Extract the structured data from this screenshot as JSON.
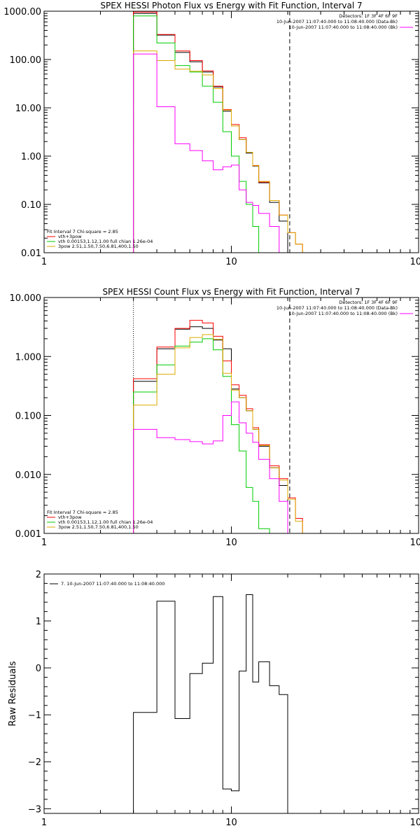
{
  "chart_data": [
    {
      "type": "line",
      "title": "SPEX HESSI Photon Flux vs Energy with Fit Function, Interval 7",
      "xscale": "log",
      "yscale": "log",
      "xlim": [
        1,
        100
      ],
      "ylim": [
        0.01,
        1000
      ],
      "xticks": [
        1,
        10,
        100
      ],
      "xtick_labels": [
        "1",
        "10",
        "100"
      ],
      "yticks": [
        0.01,
        0.1,
        1,
        10,
        100,
        1000
      ],
      "ytick_labels": [
        "0.01",
        "0.10",
        "1.00",
        "10.00",
        "100.00",
        "1000.00"
      ],
      "vlines": [
        {
          "x": 3,
          "style": "dotted"
        },
        {
          "x": 20.5,
          "style": "dashed"
        }
      ],
      "header": [
        "Detectors: 1F 3F 4F 6F 9F",
        "10-Jun-2007 11:07:40.000 to 11:08:40.000 (Data-Bk)",
        "10-Jun-2007 11:07:40.000 to 11:08:40.000 (Bk)"
      ],
      "header_colors": [
        "#000000",
        "#000000",
        "#ff00ff"
      ],
      "legend_title": "Fit Interval  7   Chi-square = 2.85",
      "legend": [
        {
          "label": "vth+3pow",
          "color": "#ff0000"
        },
        {
          "label": "vth 0.00153,1.12,1.00  full chian 1.26e-04",
          "color": "#00cc00"
        },
        {
          "label": "3pow 2.51,1.50,7.50,6.81,400,1.50",
          "color": "#ddaa00"
        }
      ],
      "bin_edges": [
        3,
        4,
        5,
        6,
        7,
        8,
        9,
        10,
        11,
        12,
        13,
        14,
        16,
        18,
        20,
        22,
        24,
        26
      ],
      "series": [
        {
          "name": "data",
          "color": "#000000",
          "values": [
            900,
            320,
            140,
            90,
            55,
            27,
            8.5,
            4.2,
            2.2,
            1.15,
            0.62,
            0.28,
            0.11,
            0.045,
            null,
            null,
            null
          ]
        },
        {
          "name": "vth+3pow",
          "color": "#ff0000",
          "values": [
            960,
            330,
            150,
            95,
            58,
            28,
            9.2,
            4.5,
            2.4,
            1.2,
            0.64,
            0.29,
            0.12,
            0.06,
            0.026,
            0.015,
            null
          ]
        },
        {
          "name": "vth",
          "color": "#00cc00",
          "values": [
            800,
            220,
            75,
            55,
            28,
            13,
            3.2,
            1.0,
            0.3,
            0.1,
            0.035,
            null,
            null,
            null,
            null,
            null,
            null
          ]
        },
        {
          "name": "3pow",
          "color": "#ddaa00",
          "values": [
            150,
            95,
            63,
            57,
            48,
            25,
            9.0,
            4.2,
            2.2,
            1.2,
            0.63,
            0.3,
            0.12,
            0.06,
            0.026,
            0.015,
            null
          ]
        },
        {
          "name": "background",
          "color": "#ff00ff",
          "values": [
            130,
            10.5,
            1.8,
            1.3,
            0.8,
            0.52,
            0.6,
            0.65,
            0.2,
            0.11,
            0.095,
            0.065,
            0.035,
            null,
            null,
            null,
            null
          ]
        }
      ]
    },
    {
      "type": "line",
      "title": "SPEX HESSI Count Flux vs Energy with Fit Function, Interval 7",
      "xscale": "log",
      "yscale": "log",
      "xlim": [
        1,
        100
      ],
      "ylim": [
        0.001,
        10
      ],
      "xticks": [
        1,
        10,
        100
      ],
      "xtick_labels": [
        "1",
        "10",
        "100"
      ],
      "yticks": [
        0.001,
        0.01,
        0.1,
        1,
        10
      ],
      "ytick_labels": [
        "0.001",
        "0.010",
        "0.100",
        "1.000",
        "10.000"
      ],
      "vlines": [
        {
          "x": 3,
          "style": "dotted"
        },
        {
          "x": 20.5,
          "style": "dashed"
        }
      ],
      "header": [
        "Detectors: 1F 3F 4F 6F 9F",
        "10-Jun-2007 11:07:40.000 to 11:08:40.000 (Data-Bk)",
        "10-Jun-2007 11:07:40.000 to 11:08:40.000 (Bk)"
      ],
      "header_colors": [
        "#000000",
        "#000000",
        "#ff00ff"
      ],
      "legend_title": "Fit Interval  7   Chi-square = 2.85",
      "legend": [
        {
          "label": "vth+3pow",
          "color": "#ff0000"
        },
        {
          "label": "vth 0.00153,1.12,1.00  full chian 1.26e-04",
          "color": "#00cc00"
        },
        {
          "label": "3pow 2.51,1.50,7.50,6.81,400,1.50",
          "color": "#ddaa00"
        }
      ],
      "bin_edges": [
        3,
        4,
        5,
        6,
        7,
        8,
        9,
        10,
        11,
        12,
        13,
        14,
        16,
        18,
        20,
        22,
        24,
        26
      ],
      "series": [
        {
          "name": "data",
          "color": "#000000",
          "values": [
            0.38,
            1.35,
            2.9,
            3.2,
            3.0,
            1.9,
            1.35,
            0.28,
            0.2,
            0.12,
            0.058,
            0.03,
            0.013,
            0.0065,
            null,
            null,
            null
          ]
        },
        {
          "name": "vth+3pow",
          "color": "#ff0000",
          "values": [
            0.42,
            1.45,
            3.0,
            4.1,
            3.7,
            2.2,
            0.84,
            0.33,
            0.22,
            0.13,
            0.062,
            0.032,
            0.014,
            0.0085,
            0.004,
            0.0018,
            null
          ]
        },
        {
          "name": "vth",
          "color": "#00cc00",
          "values": [
            0.25,
            0.72,
            1.5,
            1.75,
            2.0,
            1.3,
            0.46,
            0.07,
            0.025,
            0.006,
            0.0035,
            0.0012,
            null,
            null,
            null,
            null,
            null
          ]
        },
        {
          "name": "3pow",
          "color": "#ddaa00",
          "values": [
            0.15,
            0.5,
            1.4,
            2.1,
            2.35,
            1.95,
            0.52,
            0.27,
            0.2,
            0.12,
            0.058,
            0.031,
            0.013,
            0.008,
            0.0038,
            0.0016,
            null
          ]
        },
        {
          "name": "background",
          "color": "#ff00ff",
          "values": [
            0.058,
            0.042,
            0.039,
            0.036,
            0.033,
            0.037,
            0.1,
            0.17,
            0.075,
            0.05,
            0.035,
            0.018,
            0.0085,
            0.0035,
            null,
            null,
            null
          ]
        }
      ]
    },
    {
      "type": "line",
      "title": "",
      "xscale": "log",
      "xlim": [
        1,
        100
      ],
      "ylim": [
        -3.1,
        2
      ],
      "xticks": [
        1,
        10,
        100
      ],
      "xtick_labels": [
        "1",
        "10",
        "100"
      ],
      "yticks": [
        -3,
        -2,
        -1,
        0,
        1,
        2
      ],
      "ytick_labels": [
        "−3",
        "−2",
        "−1",
        "0",
        "1",
        "2"
      ],
      "ylabel": "Raw Residuals",
      "legend": [
        {
          "label": "7. 10-Jun-2007 11:07:40.000 to 11:08:40.000",
          "color": "#000000"
        }
      ],
      "bin_edges": [
        3,
        4,
        5,
        6,
        7,
        8,
        9,
        10,
        11,
        12,
        13,
        14,
        16,
        18,
        20
      ],
      "series": [
        {
          "name": "residuals",
          "color": "#000000",
          "values": [
            -0.95,
            1.42,
            -1.08,
            -0.12,
            0.1,
            1.52,
            -2.58,
            -2.62,
            -0.07,
            1.56,
            -0.3,
            0.13,
            -0.38,
            -0.57
          ]
        }
      ]
    }
  ]
}
